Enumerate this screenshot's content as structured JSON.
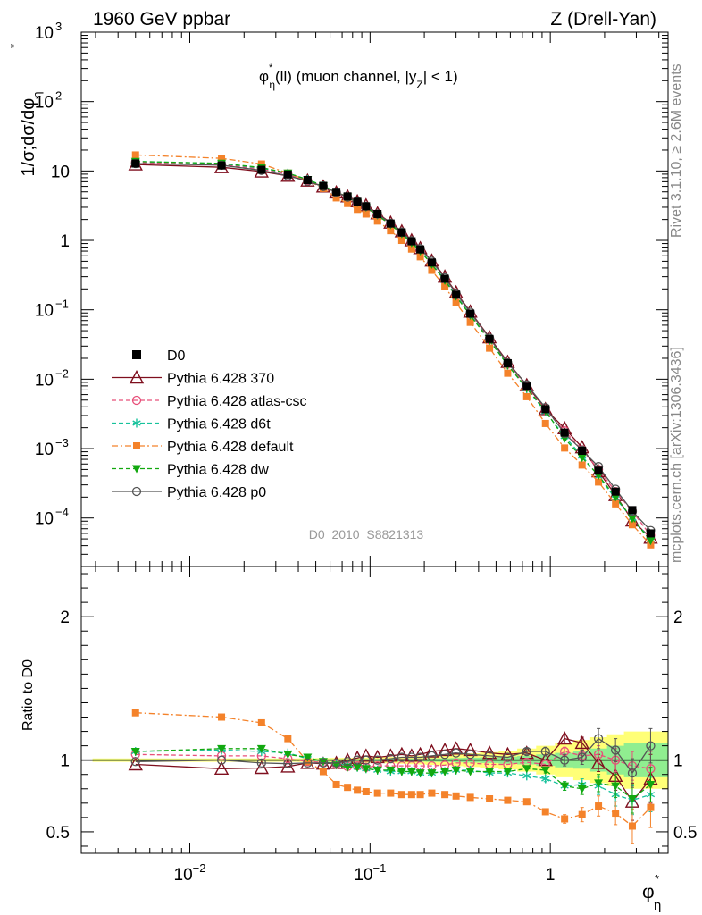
{
  "header": {
    "left": "1960 GeV ppbar",
    "right": "Z (Drell-Yan)"
  },
  "sidebar": {
    "top": "Rivet 3.1.10, ≥ 2.6M events",
    "bottom": "mcplots.cern.ch [arXiv:1306.3436]"
  },
  "watermark": "D0_2010_S8821313",
  "chart_data": [
    {
      "type": "scatter",
      "title": "φ*η(ll) (muon channel, |yZ| < 1)",
      "title_parts": {
        "phi": "φ",
        "star": "*",
        "eta": "η",
        "rest1": "(ll) (muon channel, |y",
        "z": "Z",
        "rest2": "| < 1)"
      },
      "xlabel": "φ*η",
      "ylabel": "1/σ;dσ/dφ*η",
      "ylabel_parts": {
        "main": "1/σ;dσ/dφ",
        "star": "*",
        "eta": "η"
      },
      "xscale": "log",
      "yscale": "log",
      "xlim": [
        0.0025,
        4.5
      ],
      "ylim": [
        2e-05,
        1000
      ],
      "x_ticks": [
        {
          "value": 0.01,
          "base": "10",
          "exp": "−2"
        },
        {
          "value": 0.1,
          "base": "10",
          "exp": "−1"
        },
        {
          "value": 1,
          "base": "1",
          "exp": ""
        }
      ],
      "y_ticks": [
        {
          "value": 0.0001,
          "base": "10",
          "exp": "−4"
        },
        {
          "value": 0.001,
          "base": "10",
          "exp": "−3"
        },
        {
          "value": 0.01,
          "base": "10",
          "exp": "−2"
        },
        {
          "value": 0.1,
          "base": "10",
          "exp": "−1"
        },
        {
          "value": 1,
          "base": "1",
          "exp": ""
        },
        {
          "value": 10,
          "base": "10",
          "exp": ""
        },
        {
          "value": 100,
          "base": "10",
          "exp": "2"
        },
        {
          "value": 1000,
          "base": "10",
          "exp": "3"
        }
      ],
      "legend_position": "bottom-left",
      "x": [
        0.005,
        0.015,
        0.025,
        0.035,
        0.045,
        0.055,
        0.065,
        0.075,
        0.085,
        0.095,
        0.11,
        0.13,
        0.15,
        0.17,
        0.19,
        0.22,
        0.26,
        0.3,
        0.36,
        0.46,
        0.58,
        0.74,
        0.94,
        1.2,
        1.5,
        1.85,
        2.3,
        2.85,
        3.6
      ],
      "reference": {
        "name": "D0",
        "values": [
          12.8,
          12.0,
          10.4,
          8.9,
          7.4,
          6.1,
          5.0,
          4.3,
          3.6,
          3.1,
          2.4,
          1.75,
          1.3,
          0.97,
          0.74,
          0.48,
          0.28,
          0.165,
          0.088,
          0.038,
          0.017,
          0.0078,
          0.0037,
          0.0017,
          0.00093,
          0.00048,
          0.00024,
          0.00013,
          6e-05
        ]
      },
      "series": [
        {
          "name": "Pythia 6.428 370",
          "color": "#7f0f1e",
          "marker": "triangle-open",
          "dash": "solid",
          "values": [
            12.4,
            11.3,
            9.8,
            8.5,
            7.25,
            5.95,
            4.9,
            4.3,
            3.65,
            3.2,
            2.45,
            1.8,
            1.35,
            1.0,
            0.77,
            0.51,
            0.3,
            0.178,
            0.094,
            0.04,
            0.0177,
            0.0082,
            0.0037,
            0.00196,
            0.00104,
            0.00047,
            0.000213,
            9.2e-05,
            5.2e-05
          ],
          "ratio": [
            0.97,
            0.94,
            0.945,
            0.955,
            0.98,
            0.975,
            0.98,
            1.0,
            1.015,
            1.03,
            1.02,
            1.03,
            1.04,
            1.03,
            1.04,
            1.06,
            1.07,
            1.08,
            1.07,
            1.05,
            1.04,
            1.05,
            1.0,
            1.15,
            1.12,
            0.98,
            0.89,
            0.71,
            0.87
          ],
          "ratio_err": [
            0,
            0,
            0,
            0,
            0,
            0,
            0,
            0,
            0,
            0,
            0,
            0,
            0,
            0,
            0,
            0,
            0,
            0,
            0,
            0,
            0,
            0,
            0,
            0.03,
            0.04,
            0.06,
            0.1,
            0.13,
            0.17
          ]
        },
        {
          "name": "Pythia 6.428 atlas-csc",
          "color": "#e8507a",
          "marker": "circle-open",
          "dash": "dash",
          "values": [
            13.3,
            12.3,
            10.7,
            9.0,
            7.3,
            6.0,
            4.85,
            4.1,
            3.45,
            2.95,
            2.3,
            1.68,
            1.25,
            0.93,
            0.71,
            0.46,
            0.27,
            0.162,
            0.086,
            0.037,
            0.0165,
            0.0077,
            0.0036,
            0.0018,
            0.00096,
            0.0005,
            0.00024,
            0.000125,
            5.6e-05
          ],
          "ratio": [
            1.04,
            1.03,
            1.03,
            1.01,
            0.99,
            0.985,
            0.97,
            0.955,
            0.96,
            0.95,
            0.96,
            0.96,
            0.96,
            0.96,
            0.96,
            0.96,
            0.965,
            0.98,
            0.98,
            0.97,
            0.97,
            0.985,
            0.97,
            1.06,
            1.03,
            1.04,
            1.0,
            0.96,
            0.94
          ],
          "ratio_err": [
            0,
            0,
            0,
            0,
            0,
            0,
            0,
            0,
            0,
            0,
            0,
            0,
            0,
            0,
            0,
            0,
            0,
            0,
            0,
            0,
            0,
            0,
            0,
            0.03,
            0.04,
            0.06,
            0.08,
            0.1,
            0.12
          ]
        },
        {
          "name": "Pythia 6.428 d6t",
          "color": "#17c29c",
          "marker": "asterisk",
          "dash": "dash",
          "values": [
            13.7,
            12.8,
            11.0,
            9.3,
            7.5,
            6.1,
            4.95,
            4.2,
            3.5,
            3.0,
            2.35,
            1.7,
            1.26,
            0.94,
            0.71,
            0.46,
            0.27,
            0.16,
            0.085,
            0.036,
            0.016,
            0.0073,
            0.0034,
            0.0015,
            0.00078,
            0.0004,
            0.00019,
            0.0001,
            4.8e-05
          ],
          "ratio": [
            1.06,
            1.07,
            1.06,
            1.05,
            1.01,
            0.99,
            0.975,
            0.965,
            0.95,
            0.94,
            0.93,
            0.92,
            0.92,
            0.92,
            0.91,
            0.91,
            0.92,
            0.93,
            0.93,
            0.91,
            0.91,
            0.89,
            0.87,
            0.82,
            0.83,
            0.82,
            0.76,
            0.72,
            0.76
          ],
          "ratio_err": [
            0,
            0,
            0,
            0,
            0,
            0,
            0,
            0,
            0,
            0,
            0,
            0,
            0,
            0,
            0,
            0,
            0,
            0,
            0,
            0,
            0,
            0,
            0.02,
            0.03,
            0.04,
            0.06,
            0.08,
            0.1,
            0.12
          ]
        },
        {
          "name": "Pythia 6.428 default",
          "color": "#f4822a",
          "marker": "square-filled",
          "dash": "dashdot",
          "values": [
            17.0,
            15.2,
            12.6,
            9.3,
            7.3,
            5.6,
            4.1,
            3.4,
            2.8,
            2.4,
            1.9,
            1.38,
            1.0,
            0.75,
            0.58,
            0.37,
            0.215,
            0.126,
            0.066,
            0.028,
            0.0122,
            0.0056,
            0.0023,
            0.00102,
            0.00058,
            0.00033,
            0.00016,
            8e-05,
            4.1e-05
          ],
          "ratio": [
            1.33,
            1.3,
            1.26,
            1.15,
            0.99,
            0.92,
            0.83,
            0.81,
            0.79,
            0.78,
            0.77,
            0.77,
            0.76,
            0.76,
            0.76,
            0.77,
            0.76,
            0.75,
            0.74,
            0.73,
            0.72,
            0.71,
            0.64,
            0.59,
            0.62,
            0.68,
            0.63,
            0.54,
            0.67
          ],
          "ratio_err": [
            0,
            0,
            0,
            0,
            0,
            0,
            0,
            0,
            0,
            0,
            0,
            0,
            0,
            0,
            0,
            0,
            0,
            0,
            0,
            0,
            0,
            0,
            0.02,
            0.03,
            0.05,
            0.07,
            0.08,
            0.12,
            0.14
          ]
        },
        {
          "name": "Pythia 6.428 dw",
          "color": "#12a80f",
          "marker": "triangle-down-filled",
          "dash": "dash",
          "values": [
            13.7,
            12.9,
            11.2,
            9.3,
            7.5,
            6.1,
            4.95,
            4.2,
            3.5,
            3.0,
            2.3,
            1.68,
            1.24,
            0.92,
            0.7,
            0.45,
            0.265,
            0.157,
            0.083,
            0.036,
            0.016,
            0.0074,
            0.0035,
            0.0014,
            0.00074,
            0.00041,
            0.0002,
            9.8e-05,
            4.7e-05
          ],
          "ratio": [
            1.06,
            1.08,
            1.08,
            1.04,
            1.02,
            0.99,
            0.965,
            0.95,
            0.95,
            0.94,
            0.93,
            0.93,
            0.92,
            0.92,
            0.91,
            0.91,
            0.92,
            0.93,
            0.92,
            0.92,
            0.92,
            0.94,
            0.93,
            0.82,
            0.8,
            0.84,
            0.82,
            0.73,
            0.83
          ],
          "ratio_err": [
            0,
            0,
            0,
            0,
            0,
            0,
            0,
            0,
            0,
            0,
            0,
            0,
            0,
            0,
            0,
            0,
            0,
            0,
            0,
            0,
            0,
            0,
            0.02,
            0.03,
            0.04,
            0.06,
            0.08,
            0.1,
            0.12
          ]
        },
        {
          "name": "Pythia 6.428 p0",
          "color": "#555555",
          "marker": "circle-open",
          "dash": "solid",
          "values": [
            12.8,
            12.1,
            10.2,
            8.5,
            7.1,
            5.95,
            4.9,
            4.2,
            3.6,
            3.1,
            2.4,
            1.77,
            1.32,
            0.99,
            0.76,
            0.5,
            0.29,
            0.173,
            0.092,
            0.039,
            0.0172,
            0.0083,
            0.0039,
            0.00165,
            0.00095,
            0.00055,
            0.00026,
            0.000125,
            6.6e-05
          ],
          "ratio": [
            0.99,
            1.0,
            0.98,
            0.975,
            0.98,
            0.98,
            0.98,
            0.99,
            1.0,
            1.0,
            1.0,
            1.01,
            1.02,
            1.02,
            1.02,
            1.03,
            1.04,
            1.05,
            1.04,
            1.03,
            1.02,
            1.06,
            1.06,
            1.0,
            1.02,
            1.15,
            1.07,
            0.91,
            1.1
          ],
          "ratio_err": [
            0,
            0,
            0,
            0,
            0,
            0,
            0,
            0,
            0,
            0,
            0,
            0,
            0,
            0,
            0,
            0,
            0,
            0,
            0,
            0,
            0,
            0.02,
            0.03,
            0.04,
            0.05,
            0.07,
            0.08,
            0.1,
            0.12
          ]
        }
      ]
    },
    {
      "type": "scatter",
      "ylabel": "Ratio to D0",
      "xscale": "log",
      "xlim": [
        0.0025,
        4.5
      ],
      "ylim": [
        0.35,
        2.35
      ],
      "y_ticks": [
        "0.5",
        "1",
        "2"
      ],
      "reference_line": 1.0,
      "uncertainty_band": {
        "x": [
          0.005,
          0.015,
          0.025,
          0.035,
          0.045,
          0.055,
          0.065,
          0.075,
          0.085,
          0.095,
          0.11,
          0.13,
          0.15,
          0.17,
          0.19,
          0.22,
          0.26,
          0.3,
          0.36,
          0.46,
          0.58,
          0.74,
          0.94,
          1.2,
          1.5,
          1.85,
          2.3,
          2.85,
          3.6
        ],
        "stat_half_width": [
          0.005,
          0.005,
          0.005,
          0.005,
          0.005,
          0.006,
          0.006,
          0.007,
          0.007,
          0.008,
          0.008,
          0.009,
          0.01,
          0.01,
          0.011,
          0.012,
          0.013,
          0.015,
          0.017,
          0.02,
          0.025,
          0.03,
          0.04,
          0.05,
          0.06,
          0.08,
          0.1,
          0.12,
          0.12
        ],
        "total_half_width": [
          0.012,
          0.012,
          0.012,
          0.012,
          0.013,
          0.014,
          0.015,
          0.016,
          0.017,
          0.018,
          0.02,
          0.022,
          0.025,
          0.028,
          0.03,
          0.033,
          0.037,
          0.042,
          0.048,
          0.055,
          0.065,
          0.08,
          0.1,
          0.12,
          0.14,
          0.16,
          0.18,
          0.2,
          0.2
        ],
        "stat_color": "#90ee90",
        "total_color": "#ffff77"
      }
    }
  ]
}
